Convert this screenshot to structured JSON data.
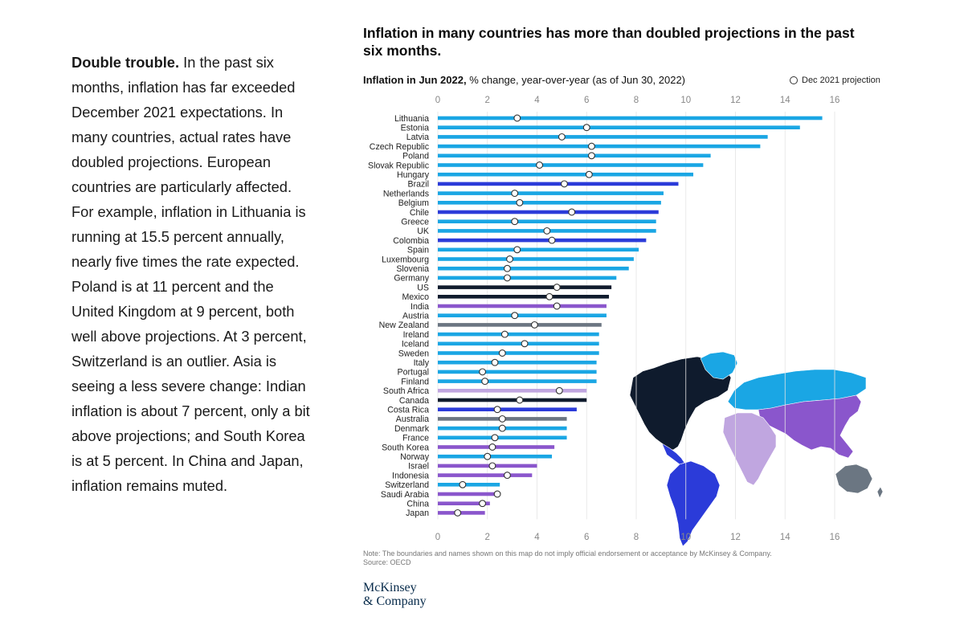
{
  "sidebar": {
    "lead": "Double trouble.",
    "body": " In the past six months, inflation has far exceeded December 2021 expectations. In many countries, actual rates have doubled projections. European countries are particularly affected. For example, inflation in Lithuania is running at 15.5 percent annually, nearly five times the rate expected. Poland is at 11 percent and the United Kingdom at 9 percent, both well above projections. At 3 percent, Switzerland is an outlier. Asia is seeing a less severe change: Indian inflation is about 7 percent, only a bit above projections; and South Korea is at 5 percent. In China and Japan, inflation remains muted."
  },
  "header": {
    "title": "Inflation in many countries has more than doubled projections in the past six months.",
    "subtitle_bold": "Inflation in Jun 2022,",
    "subtitle_rest": " % change, year-over-year (as of Jun 30, 2022)"
  },
  "legend": {
    "label": "Dec 2021 projection"
  },
  "colors": {
    "Europe": "#1aa6e4",
    "South America": "#2b3bd9",
    "North America": "#0f1b2d",
    "Asia": "#8a56cc",
    "Oceania": "#6b7682",
    "Africa": "#c0a6e0",
    "axis_text": "#888888",
    "marker_fill": "#ffffff",
    "marker_stroke": "#333333"
  },
  "chart_data": {
    "type": "bar",
    "orientation": "horizontal",
    "xlim": [
      0,
      16
    ],
    "xticks": [
      0,
      2,
      4,
      6,
      8,
      10,
      12,
      14,
      16
    ],
    "categories": [
      "Lithuania",
      "Estonia",
      "Latvia",
      "Czech Republic",
      "Poland",
      "Slovak Republic",
      "Hungary",
      "Brazil",
      "Netherlands",
      "Belgium",
      "Chile",
      "Greece",
      "UK",
      "Colombia",
      "Spain",
      "Luxembourg",
      "Slovenia",
      "Germany",
      "US",
      "Mexico",
      "India",
      "Austria",
      "New Zealand",
      "Ireland",
      "Iceland",
      "Sweden",
      "Italy",
      "Portugal",
      "Finland",
      "South Africa",
      "Canada",
      "Costa Rica",
      "Australia",
      "Denmark",
      "France",
      "South Korea",
      "Norway",
      "Israel",
      "Indonesia",
      "Switzerland",
      "Saudi Arabia",
      "China",
      "Japan"
    ],
    "regions": [
      "Europe",
      "Europe",
      "Europe",
      "Europe",
      "Europe",
      "Europe",
      "Europe",
      "South America",
      "Europe",
      "Europe",
      "South America",
      "Europe",
      "Europe",
      "South America",
      "Europe",
      "Europe",
      "Europe",
      "Europe",
      "North America",
      "North America",
      "Asia",
      "Europe",
      "Oceania",
      "Europe",
      "Europe",
      "Europe",
      "Europe",
      "Europe",
      "Europe",
      "Africa",
      "North America",
      "South America",
      "Oceania",
      "Europe",
      "Europe",
      "Asia",
      "Europe",
      "Asia",
      "Asia",
      "Europe",
      "Asia",
      "Asia",
      "Asia"
    ],
    "series": [
      {
        "name": "Inflation in Jun 2022",
        "values": [
          15.5,
          14.6,
          13.3,
          13.0,
          11.0,
          10.7,
          10.3,
          9.7,
          9.1,
          9.0,
          8.9,
          8.8,
          8.8,
          8.4,
          8.1,
          7.9,
          7.7,
          7.2,
          7.0,
          6.9,
          6.8,
          6.8,
          6.6,
          6.5,
          6.5,
          6.5,
          6.4,
          6.4,
          6.4,
          6.0,
          6.0,
          5.6,
          5.2,
          5.2,
          5.2,
          4.7,
          4.6,
          4.0,
          3.8,
          2.5,
          2.3,
          2.1,
          1.9
        ]
      },
      {
        "name": "Dec 2021 projection",
        "values": [
          3.2,
          6.0,
          5.0,
          6.2,
          6.2,
          4.1,
          6.1,
          5.1,
          3.1,
          3.3,
          5.4,
          3.1,
          4.4,
          4.6,
          3.2,
          2.9,
          2.8,
          2.8,
          4.8,
          4.5,
          4.8,
          3.1,
          3.9,
          2.7,
          3.5,
          2.6,
          2.3,
          1.8,
          1.9,
          4.9,
          3.3,
          2.4,
          2.6,
          2.6,
          2.3,
          2.2,
          2.0,
          2.2,
          2.8,
          1.0,
          2.4,
          1.8,
          0.8
        ]
      }
    ]
  },
  "footer": {
    "note": "Note: The boundaries and names shown on this map do not imply official endorsement or acceptance by McKinsey & Company.",
    "source": "Source: OECD",
    "logo_line1": "McKinsey",
    "logo_line2": "& Company"
  }
}
